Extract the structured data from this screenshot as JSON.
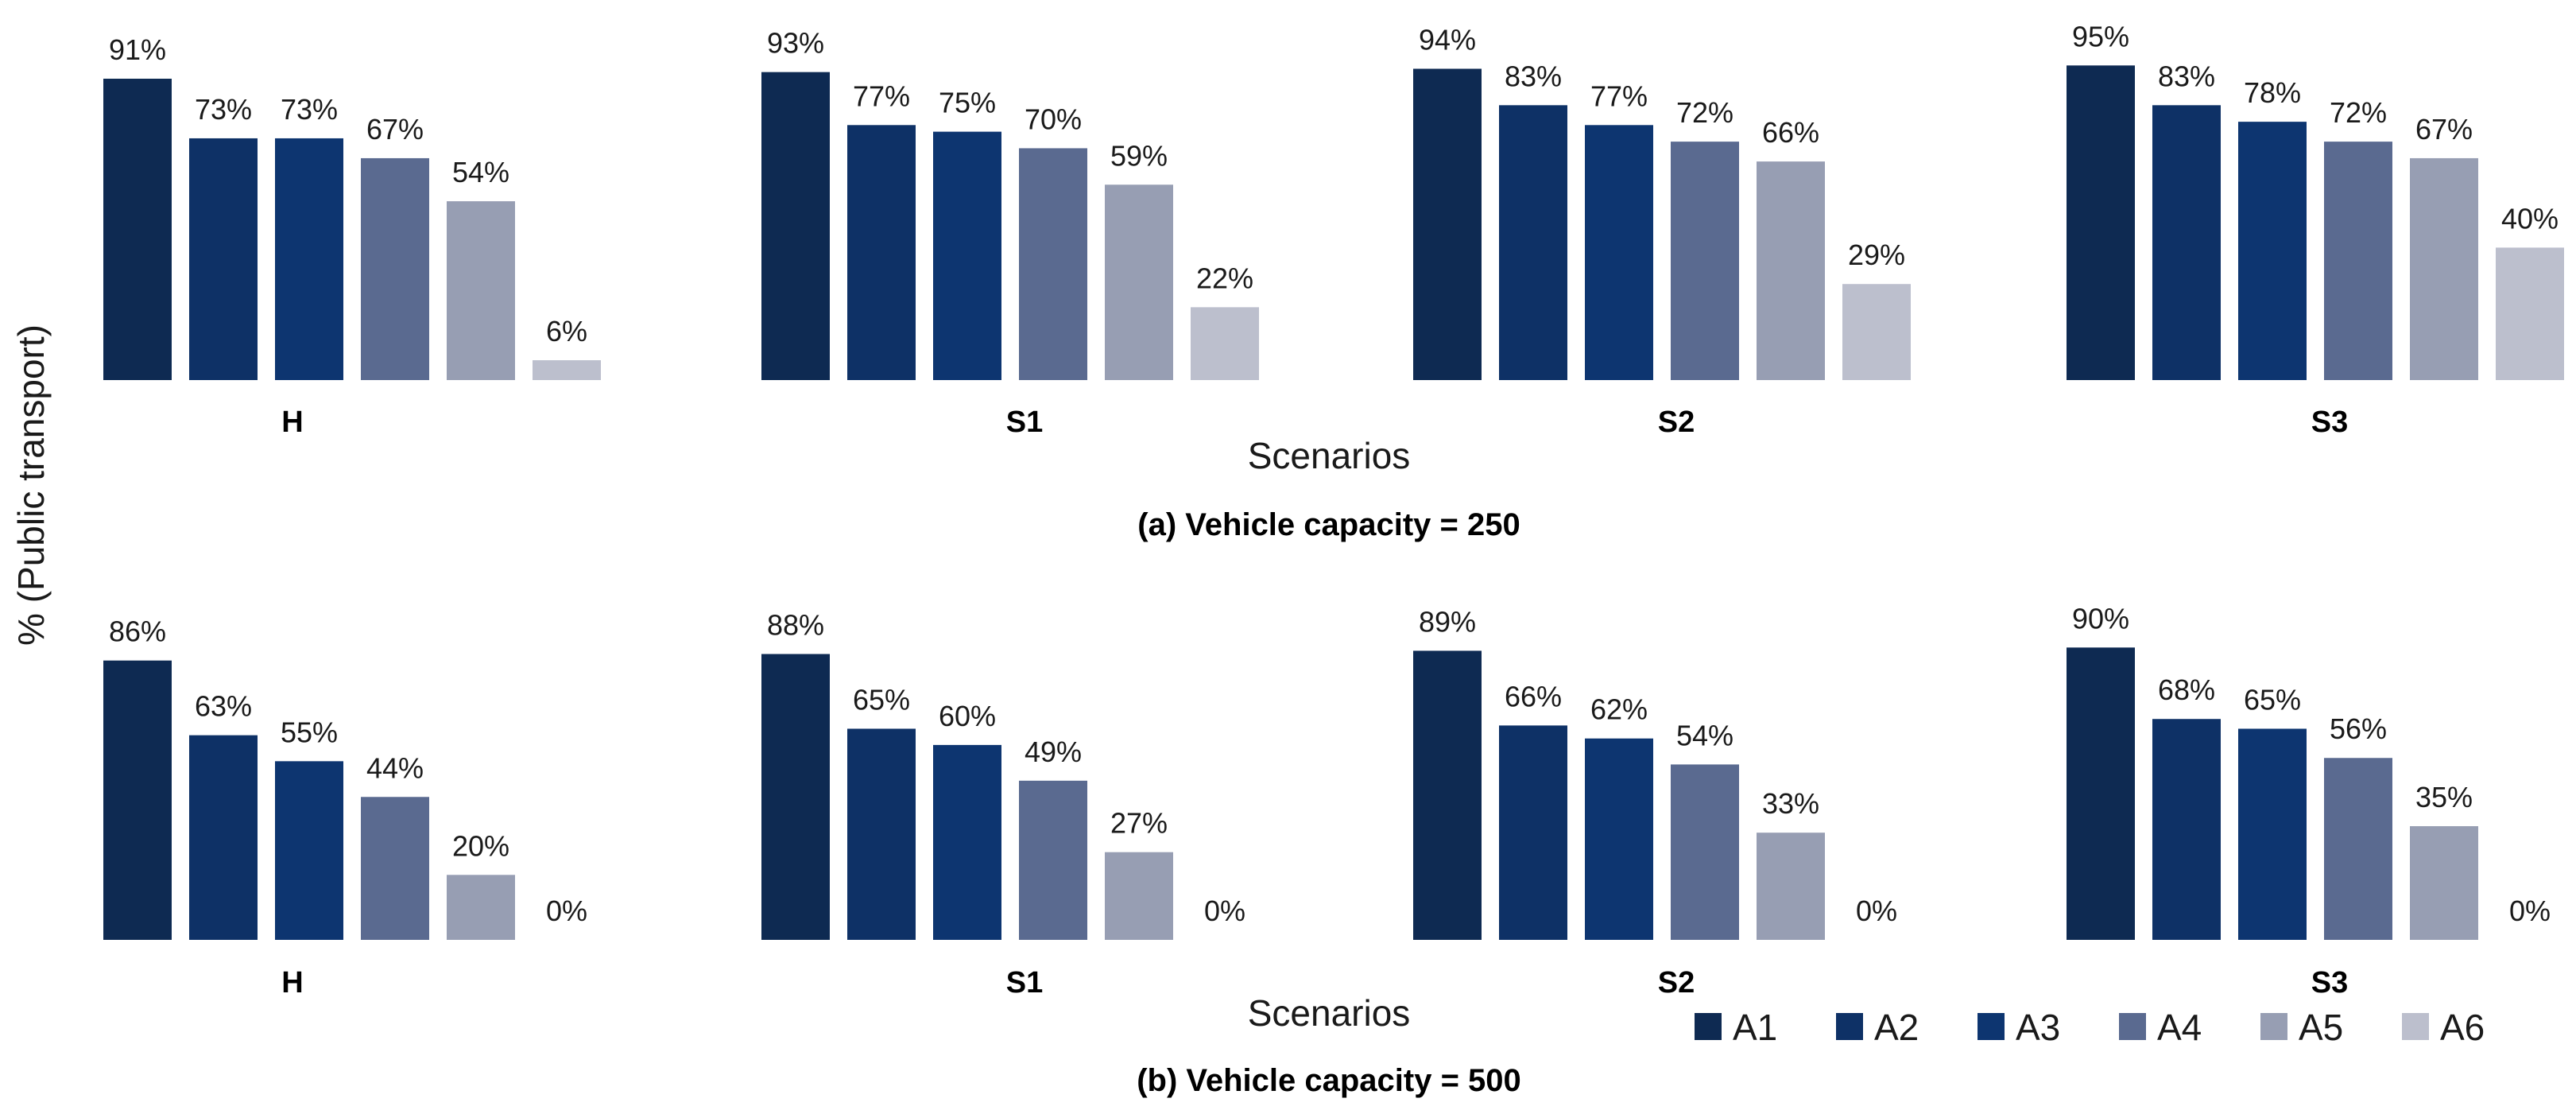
{
  "chart_data": [
    {
      "type": "bar",
      "caption": "(a) Vehicle capacity = 250",
      "xlabel": "Scenarios",
      "ylabel": "% (Public transport)",
      "ylim": [
        0,
        100
      ],
      "grid": false,
      "categories": [
        "H",
        "S1",
        "S2",
        "S3"
      ],
      "series": [
        {
          "name": "A1",
          "values": [
            91,
            93,
            94,
            95
          ]
        },
        {
          "name": "A2",
          "values": [
            73,
            77,
            83,
            83
          ]
        },
        {
          "name": "A3",
          "values": [
            73,
            75,
            77,
            78
          ]
        },
        {
          "name": "A4",
          "values": [
            67,
            70,
            72,
            72
          ]
        },
        {
          "name": "A5",
          "values": [
            54,
            59,
            66,
            67
          ]
        },
        {
          "name": "A6",
          "values": [
            6,
            22,
            29,
            40
          ]
        }
      ]
    },
    {
      "type": "bar",
      "caption": "(b) Vehicle capacity = 500",
      "xlabel": "Scenarios",
      "ylabel": "% (Public transport)",
      "ylim": [
        0,
        100
      ],
      "grid": false,
      "categories": [
        "H",
        "S1",
        "S2",
        "S3"
      ],
      "series": [
        {
          "name": "A1",
          "values": [
            86,
            88,
            89,
            90
          ]
        },
        {
          "name": "A2",
          "values": [
            63,
            65,
            66,
            68
          ]
        },
        {
          "name": "A3",
          "values": [
            55,
            60,
            62,
            65
          ]
        },
        {
          "name": "A4",
          "values": [
            44,
            49,
            54,
            56
          ]
        },
        {
          "name": "A5",
          "values": [
            20,
            27,
            33,
            35
          ]
        },
        {
          "name": "A6",
          "values": [
            0,
            0,
            0,
            0
          ]
        }
      ]
    }
  ],
  "value_suffix": "%",
  "shared_ylabel": "% (Public transport)",
  "legend": {
    "position": "bottom-right",
    "entries": [
      "A1",
      "A2",
      "A3",
      "A4",
      "A5",
      "A6"
    ]
  },
  "colors": {
    "A1": "#0e2a52",
    "A2": "#0e3166",
    "A3": "#0d3570",
    "A4": "#5a6a90",
    "A5": "#979eb3",
    "A6": "#bcbfcd"
  }
}
